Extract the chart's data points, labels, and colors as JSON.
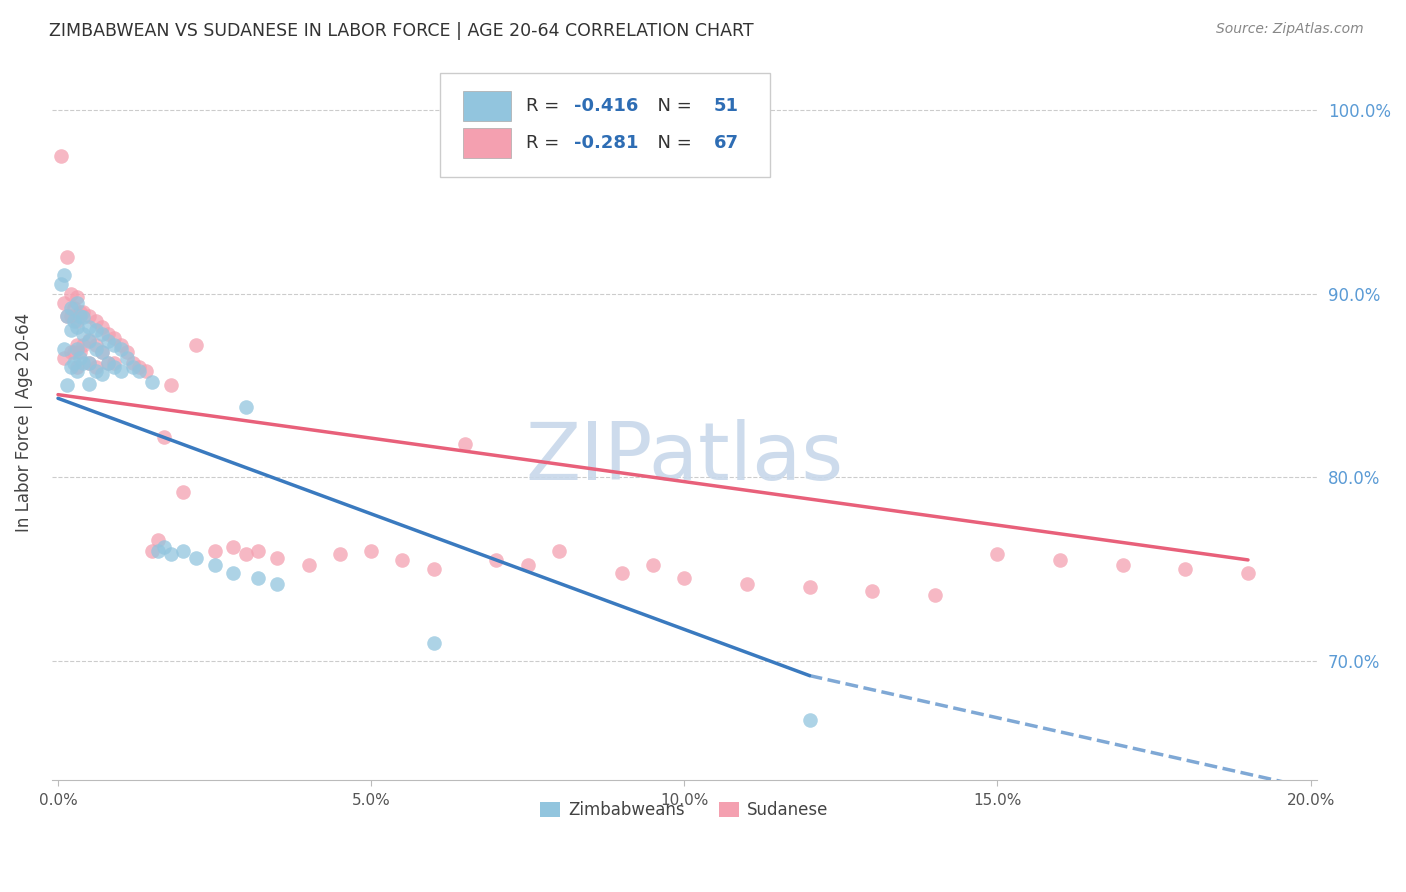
{
  "title": "ZIMBABWEAN VS SUDANESE IN LABOR FORCE | AGE 20-64 CORRELATION CHART",
  "source": "Source: ZipAtlas.com",
  "ylabel": "In Labor Force | Age 20-64",
  "xlim": [
    -0.001,
    0.201
  ],
  "ylim": [
    0.635,
    1.025
  ],
  "yticks": [
    0.7,
    0.8,
    0.9,
    1.0
  ],
  "xticks": [
    0.0,
    0.05,
    0.1,
    0.15,
    0.2
  ],
  "xtick_labels": [
    "0.0%",
    "5.0%",
    "10.0%",
    "15.0%",
    "20.0%"
  ],
  "ytick_labels": [
    "70.0%",
    "80.0%",
    "90.0%",
    "100.0%"
  ],
  "blue_color": "#92c5de",
  "pink_color": "#f4a0b0",
  "blue_line_color": "#3a7abf",
  "pink_line_color": "#e8607a",
  "r_blue": -0.416,
  "n_blue": 51,
  "r_pink": -0.281,
  "n_pink": 67,
  "zim_x": [
    0.0005,
    0.001,
    0.001,
    0.0015,
    0.0015,
    0.002,
    0.002,
    0.002,
    0.0025,
    0.0025,
    0.003,
    0.003,
    0.003,
    0.003,
    0.0035,
    0.0035,
    0.004,
    0.004,
    0.004,
    0.005,
    0.005,
    0.005,
    0.005,
    0.006,
    0.006,
    0.006,
    0.007,
    0.007,
    0.007,
    0.008,
    0.008,
    0.009,
    0.009,
    0.01,
    0.01,
    0.011,
    0.012,
    0.013,
    0.015,
    0.016,
    0.017,
    0.018,
    0.02,
    0.022,
    0.025,
    0.028,
    0.03,
    0.032,
    0.035,
    0.06,
    0.12
  ],
  "zim_y": [
    0.905,
    0.91,
    0.87,
    0.888,
    0.85,
    0.892,
    0.88,
    0.86,
    0.885,
    0.862,
    0.895,
    0.882,
    0.87,
    0.858,
    0.888,
    0.865,
    0.887,
    0.878,
    0.862,
    0.882,
    0.874,
    0.862,
    0.851,
    0.88,
    0.87,
    0.858,
    0.878,
    0.868,
    0.856,
    0.874,
    0.862,
    0.872,
    0.86,
    0.87,
    0.858,
    0.865,
    0.86,
    0.858,
    0.852,
    0.76,
    0.762,
    0.758,
    0.76,
    0.756,
    0.752,
    0.748,
    0.838,
    0.745,
    0.742,
    0.71,
    0.668
  ],
  "sud_x": [
    0.0005,
    0.001,
    0.001,
    0.0015,
    0.0015,
    0.002,
    0.002,
    0.002,
    0.0025,
    0.0025,
    0.003,
    0.003,
    0.003,
    0.003,
    0.0035,
    0.0035,
    0.004,
    0.004,
    0.005,
    0.005,
    0.005,
    0.006,
    0.006,
    0.006,
    0.007,
    0.007,
    0.008,
    0.008,
    0.009,
    0.009,
    0.01,
    0.011,
    0.012,
    0.013,
    0.014,
    0.015,
    0.016,
    0.017,
    0.018,
    0.02,
    0.022,
    0.025,
    0.028,
    0.03,
    0.032,
    0.035,
    0.04,
    0.045,
    0.05,
    0.055,
    0.06,
    0.065,
    0.07,
    0.075,
    0.08,
    0.09,
    0.095,
    0.1,
    0.11,
    0.12,
    0.13,
    0.14,
    0.15,
    0.16,
    0.17,
    0.18,
    0.19
  ],
  "sud_y": [
    0.975,
    0.895,
    0.865,
    0.92,
    0.888,
    0.9,
    0.888,
    0.868,
    0.892,
    0.868,
    0.898,
    0.885,
    0.872,
    0.86,
    0.89,
    0.868,
    0.89,
    0.872,
    0.888,
    0.875,
    0.862,
    0.885,
    0.872,
    0.86,
    0.882,
    0.868,
    0.878,
    0.862,
    0.876,
    0.862,
    0.872,
    0.868,
    0.862,
    0.86,
    0.858,
    0.76,
    0.766,
    0.822,
    0.85,
    0.792,
    0.872,
    0.76,
    0.762,
    0.758,
    0.76,
    0.756,
    0.752,
    0.758,
    0.76,
    0.755,
    0.75,
    0.818,
    0.755,
    0.752,
    0.76,
    0.748,
    0.752,
    0.745,
    0.742,
    0.74,
    0.738,
    0.736,
    0.758,
    0.755,
    0.752,
    0.75,
    0.748
  ],
  "zim_line_x0": 0.0,
  "zim_line_y0": 0.843,
  "zim_line_x1": 0.12,
  "zim_line_y1": 0.692,
  "zim_line_ext_x1": 0.201,
  "zim_line_ext_y1": 0.63,
  "sud_line_x0": 0.0,
  "sud_line_y0": 0.845,
  "sud_line_x1": 0.19,
  "sud_line_y1": 0.755
}
